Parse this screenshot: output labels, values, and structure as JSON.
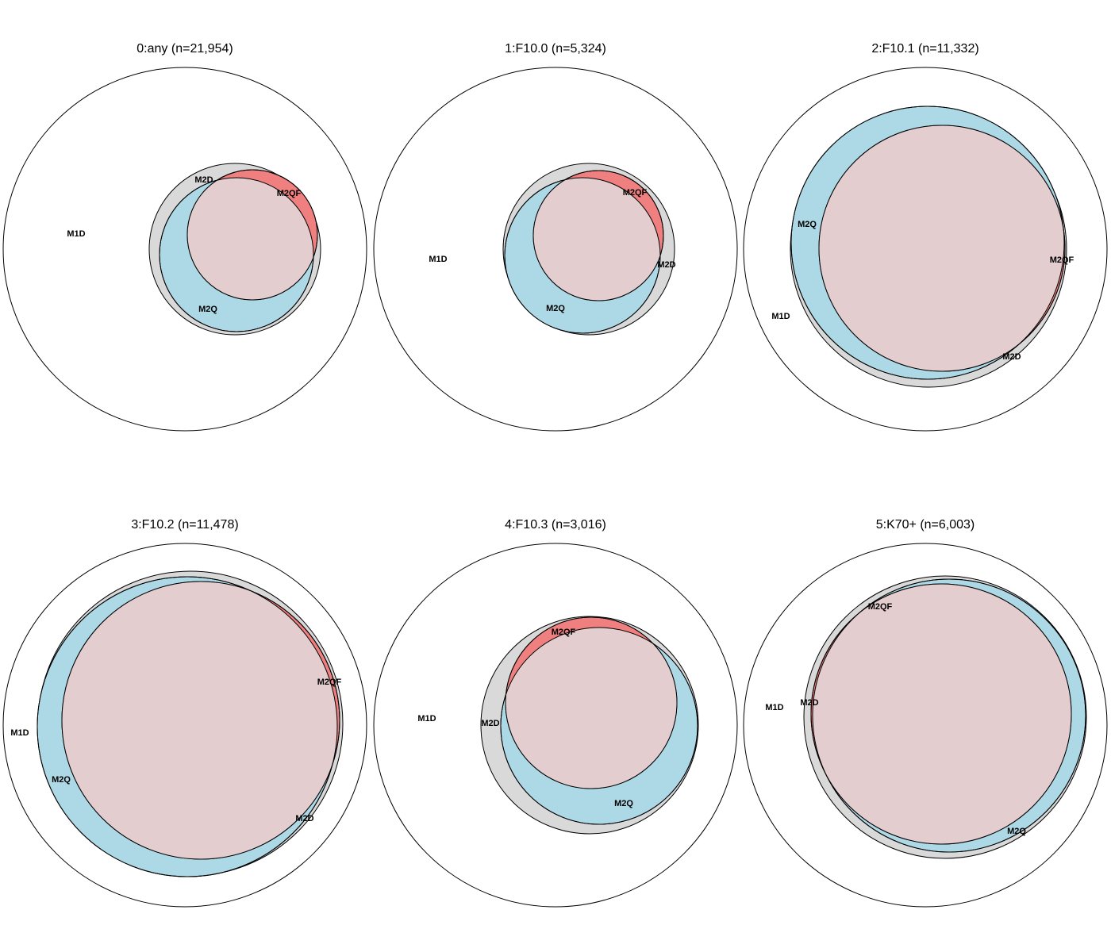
{
  "colors": {
    "M1D": "#ffffff",
    "M2D": "#d9d9d9",
    "M2Q": "#add8e6",
    "M2QF": "#f08080",
    "overlap": "#e3cdcf"
  },
  "panels": [
    {
      "title": "0:any (n=21,954)",
      "labels": {
        "M1D": "M1D",
        "M2D": "M2D",
        "M2Q": "M2Q",
        "M2QF": "M2QF"
      }
    },
    {
      "title": "1:F10.0 (n=5,324)",
      "labels": {
        "M1D": "M1D",
        "M2D": "M2D",
        "M2Q": "M2Q",
        "M2QF": "M2QF"
      }
    },
    {
      "title": "2:F10.1 (n=11,332)",
      "labels": {
        "M1D": "M1D",
        "M2D": "M2D",
        "M2Q": "M2Q",
        "M2QF": "M2QF"
      }
    },
    {
      "title": "3:F10.2 (n=11,478)",
      "labels": {
        "M1D": "M1D",
        "M2D": "M2D",
        "M2Q": "M2Q",
        "M2QF": "M2QF"
      }
    },
    {
      "title": "4:F10.3 (n=3,016)",
      "labels": {
        "M1D": "M1D",
        "M2D": "M2D",
        "M2Q": "M2Q",
        "M2QF": "M2QF"
      }
    },
    {
      "title": "5:K70+ (n=6,003)",
      "labels": {
        "M1D": "M1D",
        "M2D": "M2D",
        "M2Q": "M2Q",
        "M2QF": "M2QF"
      }
    }
  ]
}
